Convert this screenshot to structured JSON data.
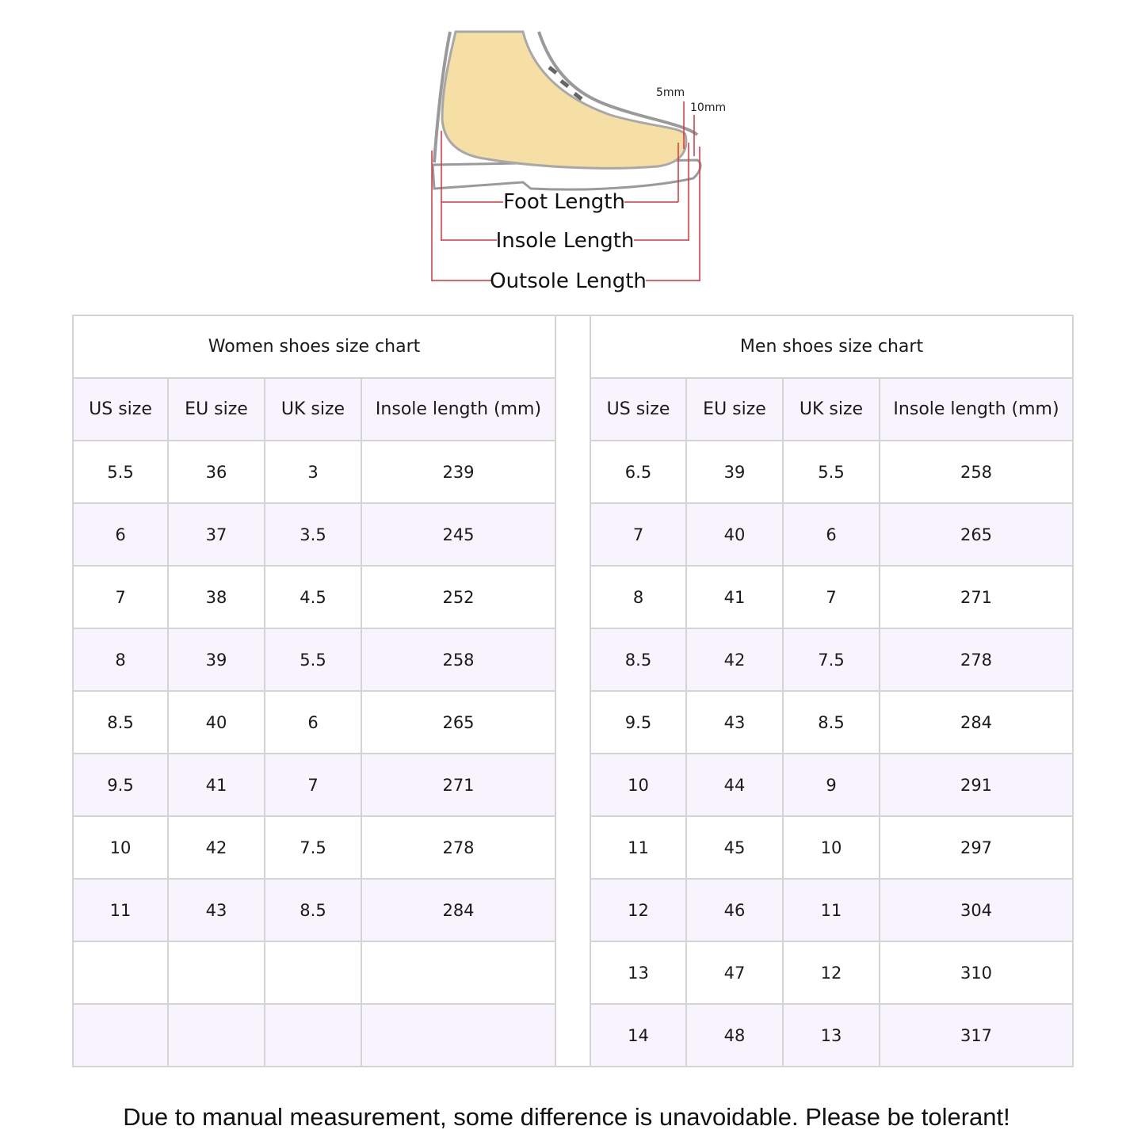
{
  "diagram": {
    "labels": {
      "toe_gap_1": "5mm",
      "toe_gap_2": "10mm",
      "foot_length": "Foot Length",
      "insole_length": "Insole Length",
      "outsole_length": "Outsole Length"
    },
    "colors": {
      "foot": "#f6dfa5",
      "measure_line": "#d9343c",
      "outline": "#9a9a9a"
    }
  },
  "women": {
    "title": "Women shoes size chart",
    "headers": [
      "US size",
      "EU size",
      "UK size",
      "Insole length (mm)"
    ],
    "rows": [
      [
        "5.5",
        "36",
        "3",
        "239"
      ],
      [
        "6",
        "37",
        "3.5",
        "245"
      ],
      [
        "7",
        "38",
        "4.5",
        "252"
      ],
      [
        "8",
        "39",
        "5.5",
        "258"
      ],
      [
        "8.5",
        "40",
        "6",
        "265"
      ],
      [
        "9.5",
        "41",
        "7",
        "271"
      ],
      [
        "10",
        "42",
        "7.5",
        "278"
      ],
      [
        "11",
        "43",
        "8.5",
        "284"
      ],
      [
        "",
        "",
        "",
        ""
      ],
      [
        "",
        "",
        "",
        ""
      ]
    ]
  },
  "men": {
    "title": "Men shoes size chart",
    "headers": [
      "US size",
      "EU size",
      "UK size",
      "Insole length (mm)"
    ],
    "rows": [
      [
        "6.5",
        "39",
        "5.5",
        "258"
      ],
      [
        "7",
        "40",
        "6",
        "265"
      ],
      [
        "8",
        "41",
        "7",
        "271"
      ],
      [
        "8.5",
        "42",
        "7.5",
        "278"
      ],
      [
        "9.5",
        "43",
        "8.5",
        "284"
      ],
      [
        "10",
        "44",
        "9",
        "291"
      ],
      [
        "11",
        "45",
        "10",
        "297"
      ],
      [
        "12",
        "46",
        "11",
        "304"
      ],
      [
        "13",
        "47",
        "12",
        "310"
      ],
      [
        "14",
        "48",
        "13",
        "317"
      ]
    ]
  },
  "colors": {
    "stripe": "#f8f4fd",
    "border": "#d4d4d4"
  },
  "footer_note": "Due to manual measurement, some difference is unavoidable. Please be tolerant!"
}
